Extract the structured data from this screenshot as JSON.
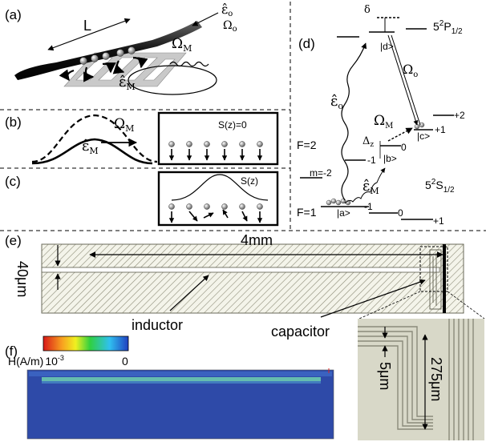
{
  "panel_labels": {
    "a": "(a)",
    "b": "(b)",
    "c": "(c)",
    "d": "(d)",
    "e": "(e)",
    "f": "(f)"
  },
  "panel_a": {
    "fiber_length": "L",
    "probe_field": "ε̂",
    "probe_field_sub": "o",
    "probe_rabi": "Ω",
    "probe_rabi_sub": "o",
    "microwave_rabi": "Ω",
    "microwave_rabi_sub": "M",
    "microwave_field": "ε̂",
    "microwave_field_sub": "M"
  },
  "panel_b": {
    "rabi": "Ω",
    "rabi_sub": "M",
    "field": "ε̂",
    "field_sub": "M",
    "spin_label": "S(z)=0"
  },
  "panel_c": {
    "spin_label": "S(z)"
  },
  "panel_d": {
    "delta": "δ",
    "excited_state": "5",
    "excited_state_sup": "2",
    "excited_state_term": "P",
    "excited_state_sub": "1/2",
    "ket_d": "|d>",
    "probe_rabi": "Ω",
    "probe_rabi_sub": "o",
    "probe_field": "ε̂",
    "probe_field_sub": "o",
    "mw_rabi": "Ω",
    "mw_rabi_sub": "M",
    "mw_field": "ε̂",
    "mw_field_sub": "M",
    "detuning": "Δ",
    "detuning_sub": "z",
    "ket_c": "|c>",
    "ket_b": "|b>",
    "ket_a": "|a>",
    "f2": "F=2",
    "f1": "F=1",
    "m_label": "m=-2",
    "m_m1": "-1",
    "m_0": "0",
    "m_p1": "+1",
    "m_p2": "+2",
    "ground_state": "5",
    "ground_state_sup": "2",
    "ground_state_term": "S",
    "ground_state_sub": "1/2"
  },
  "panel_e": {
    "length": "4mm",
    "width": "40μm",
    "inductor": "inductor",
    "capacitor": "capacitor"
  },
  "panel_f": {
    "cbar_label": "H(A/m)",
    "cbar_min": "10",
    "cbar_min_exp": "-3",
    "cbar_max": "0"
  },
  "inset": {
    "gap": "5μm",
    "height": "275μm"
  },
  "colors": {
    "hatch": "#7a7a6a",
    "sim_background": "#2e4aa8",
    "sim_line": "#6fd0b0",
    "inset_background": "#d8d8c8",
    "inset_lines": "#8a8a7a"
  }
}
